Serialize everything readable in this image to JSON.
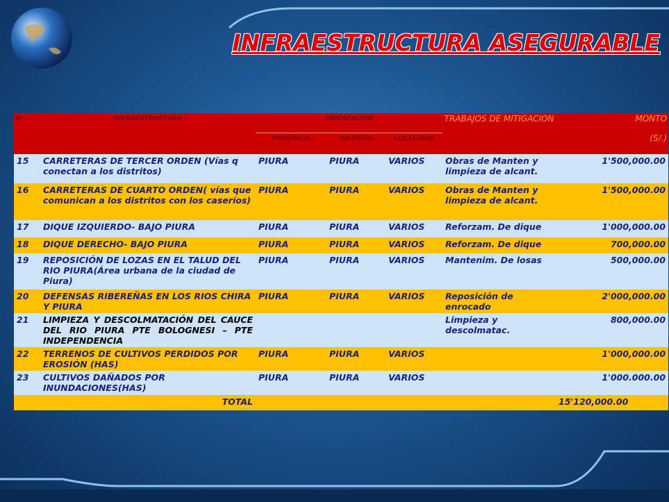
{
  "title": "INFRAESTRUCTURA ASEGURABLE",
  "table": {
    "header": {
      "n": "N°",
      "infra": "INFRAESTRUCTURA",
      "ubicacion": "UBICACACÍON",
      "provincia": "PROVINCIA",
      "distrito": "DISTRITO",
      "localidad": "LOCALIDAD",
      "trabajos": "TRABAJOS DE MITIGACION",
      "monto": "MONTO",
      "unit": "(S/.)"
    },
    "rows": [
      [
        "15",
        "CARRETERAS DE TERCER ORDEN (Vías q conectan a los distritos)",
        "PIURA",
        "PIURA",
        "VARIOS",
        "Obras de Manten y limpieza de alcant.",
        "1'500,000.00"
      ],
      [
        "16",
        "CARRETERAS DE CUARTO ORDEN( vías que comunican a los distritos con los caseríos)",
        "PIURA",
        "PIURA",
        "VARIOS",
        "Obras de Manten y limpieza de alcant.",
        "1'500,000.00"
      ],
      [
        "17",
        "DIQUE IZQUIERDO- BAJO PIURA",
        "PIURA",
        "PIURA",
        "VARIOS",
        "Reforzam. De dique",
        "1'000,000.00"
      ],
      [
        "18",
        "DIQUE DERECHO- BAJO PIURA",
        "PIURA",
        "PIURA",
        "VARIOS",
        "Reforzam. De dique",
        "700,000.00"
      ],
      [
        "19",
        "REPOSICIÓN DE LOZAS EN EL TALUD DEL RIO PIURA(Área urbana de la ciudad de Piura)",
        "PIURA",
        "PIURA",
        "VARIOS",
        "Mantenim. De losas",
        "500,000.00"
      ],
      [
        "20",
        "DEFENSAS RIBEREÑAS EN LOS RIOS CHIRA Y PIURA",
        "PIURA",
        "PIURA",
        "VARIOS",
        "Reposición de enrocado",
        "2'000,000.00"
      ],
      [
        "21",
        "LIMPIEZA Y DESCOLMATACIÓN DEL CAUCE DEL RIO PIURA PTE BOLOGNESI – PTE INDEPENDENCIA",
        null,
        null,
        null,
        "Limpieza y descolmatac.",
        "800,000.00"
      ],
      [
        "22",
        "TERRENOS DE CULTIVOS PERDIDOS POR EROSIÓN (HAS)",
        "PIURA",
        "PIURA",
        "VARIOS",
        null,
        "1'000,000.00"
      ],
      [
        "23",
        "CULTIVOS DAÑADOS POR INUNDACIONES(HAS)",
        "PIURA",
        "PIURA",
        "VARIOS",
        null,
        "1'000.000.00"
      ]
    ],
    "total": {
      "label": "TOTAL",
      "value": "15'120,000.00"
    }
  }
}
